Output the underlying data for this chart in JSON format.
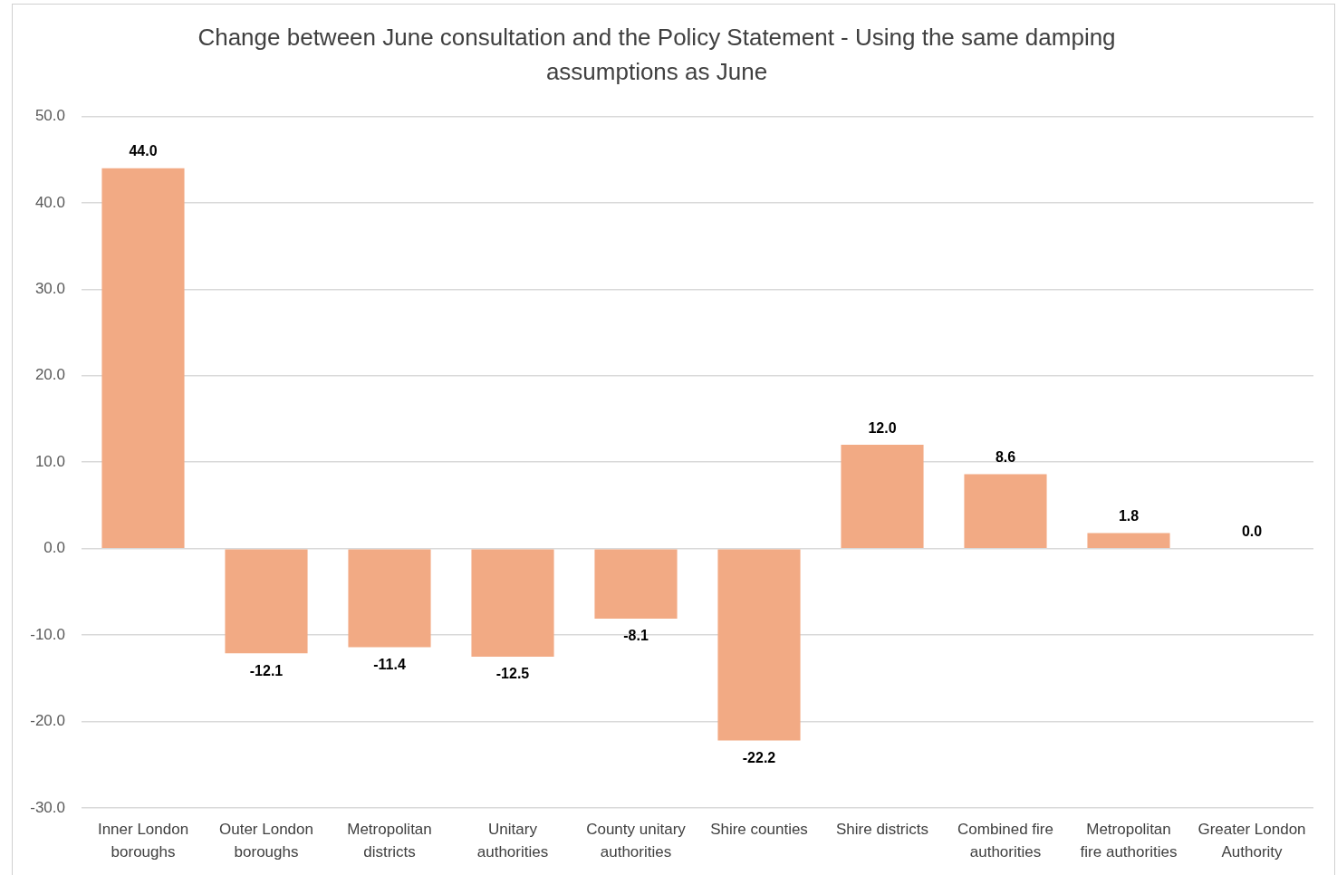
{
  "chart_data": {
    "type": "bar",
    "title": "Change between June consultation and the Policy Statement - Using the same damping assumptions as June",
    "categories": [
      "Inner London boroughs",
      "Outer London boroughs",
      "Metropolitan districts",
      "Unitary authorities",
      "County unitary authorities",
      "Shire counties",
      "Shire districts",
      "Combined fire authorities",
      "Metropolitan fire authorities",
      "Greater London Authority"
    ],
    "values": [
      44.0,
      -12.1,
      -11.4,
      -12.5,
      -8.1,
      -22.2,
      12.0,
      8.6,
      1.8,
      0.0
    ],
    "value_labels": [
      "44.0",
      "-12.1",
      "-11.4",
      "-12.5",
      "-8.1",
      "-22.2",
      "12.0",
      "8.6",
      "1.8",
      "0.0"
    ],
    "color": "#f2aa84",
    "ylim": [
      -30,
      50
    ],
    "yticks": [
      {
        "value": -30,
        "label": "-30.0"
      },
      {
        "value": -20,
        "label": "-20.0"
      },
      {
        "value": -10,
        "label": "-10.0"
      },
      {
        "value": 0,
        "label": "0.0"
      },
      {
        "value": 10,
        "label": "10.0"
      },
      {
        "value": 20,
        "label": "20.0"
      },
      {
        "value": 30,
        "label": "30.0"
      },
      {
        "value": 40,
        "label": "40.0"
      },
      {
        "value": 50,
        "label": "50.0"
      }
    ],
    "grid": "y"
  }
}
